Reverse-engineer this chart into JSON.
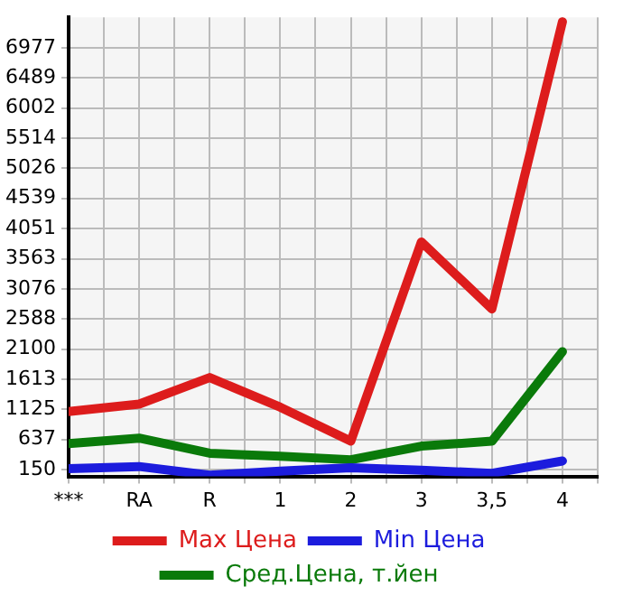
{
  "chart_data": {
    "type": "line",
    "categories": [
      "***",
      "RA",
      "R",
      "1",
      "2",
      "3",
      "3,5",
      "4"
    ],
    "series": [
      {
        "name": "Max Цена",
        "color": "#dd1c1c",
        "values": [
          1090,
          1210,
          1640,
          1160,
          610,
          3835,
          2750,
          7400
        ]
      },
      {
        "name": "Min Цена",
        "color": "#1c1cdd",
        "values": [
          165,
          200,
          60,
          125,
          180,
          140,
          90,
          290
        ]
      },
      {
        "name": "Сред.Цена, т.йен",
        "color": "#0a7a0a",
        "values": [
          570,
          660,
          415,
          365,
          310,
          530,
          610,
          2060
        ]
      }
    ],
    "ylim": [
      40,
      7470
    ],
    "yticks": [
      150,
      637,
      1125,
      1613,
      2100,
      2588,
      3076,
      3563,
      4051,
      4539,
      5026,
      5514,
      6002,
      6489,
      6977
    ],
    "grid": true,
    "legend": "bottom",
    "marker": "none",
    "line_style": "solid"
  }
}
